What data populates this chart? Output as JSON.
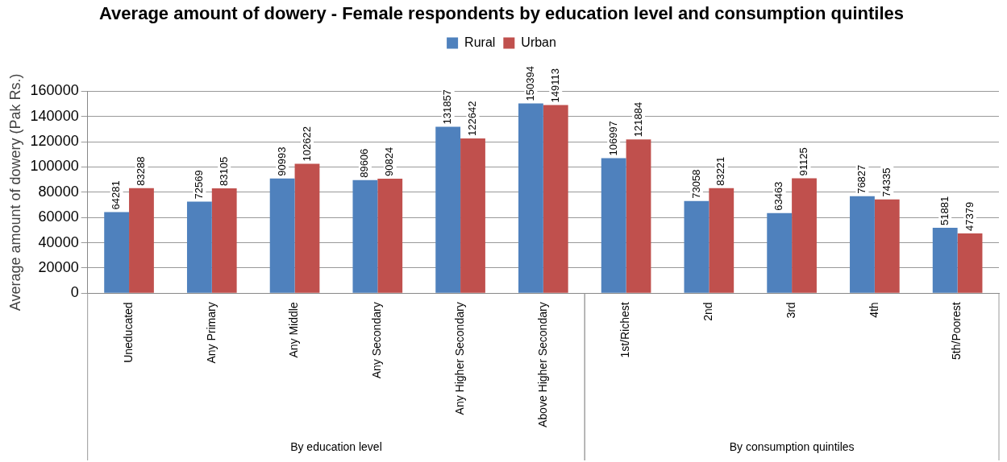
{
  "chart_data": {
    "type": "bar",
    "title": "Average amount of dowery - Female respondents by education level and consumption quintiles",
    "ylabel": "Average amount of dowery (Pak Rs.)",
    "categories": [
      "Uneducated",
      "Any Primary",
      "Any Middle",
      "Any Secondary",
      "Any Higher Secondary",
      "Above Higher Secondary",
      "1st/Richest",
      "2nd",
      "3rd",
      "4th",
      "5th/Poorest"
    ],
    "series": [
      {
        "name": "Rural",
        "color": "#4f81bd",
        "values": [
          64281,
          72569,
          90993,
          89606,
          131857,
          150394,
          106997,
          73058,
          63463,
          76827,
          51881
        ]
      },
      {
        "name": "Urban",
        "color": "#c0504d",
        "values": [
          83288,
          83105,
          102622,
          90824,
          122642,
          149113,
          121884,
          83221,
          91125,
          74335,
          47379
        ]
      }
    ],
    "ylim": [
      0,
      160000
    ],
    "yticks": [
      0,
      20000,
      40000,
      60000,
      80000,
      100000,
      120000,
      140000,
      160000
    ],
    "grid": "y",
    "legend": "top",
    "data_labels": true,
    "annotations": [
      "By education level",
      "By consumption quintiles"
    ]
  }
}
